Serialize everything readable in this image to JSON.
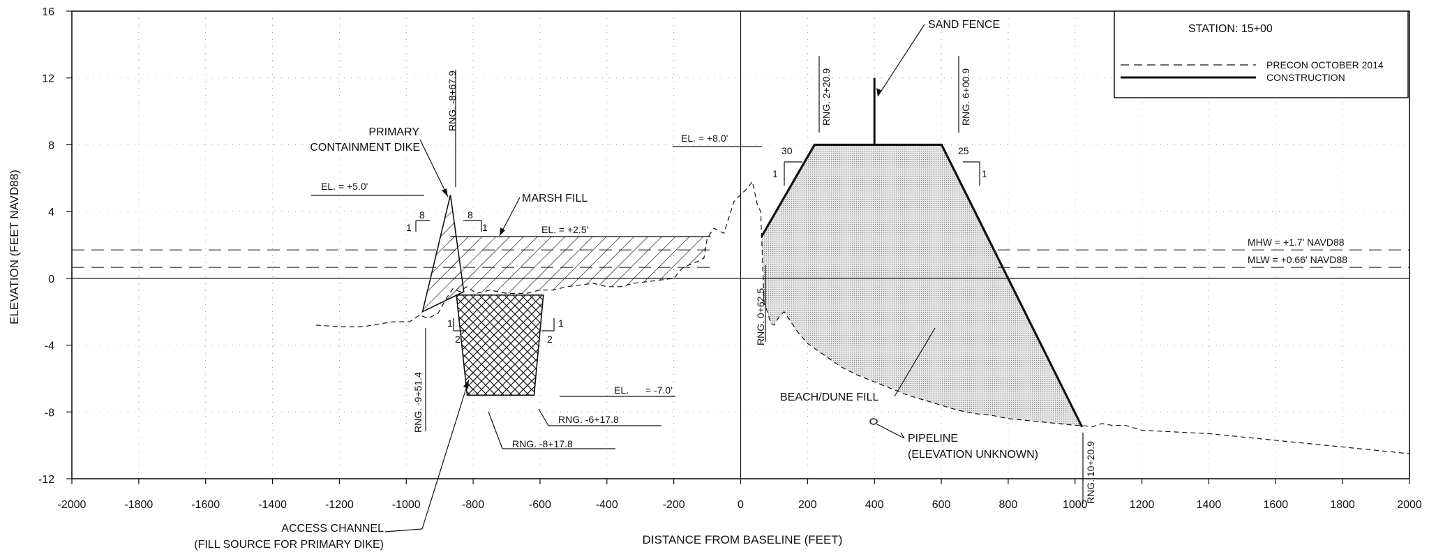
{
  "chart_data": {
    "type": "line",
    "title": "STATION: 15+00",
    "xlabel": "DISTANCE FROM BASELINE (FEET)",
    "ylabel": "ELEVATION (FEET NAVD88)",
    "xlim": [
      -2000,
      2000
    ],
    "ylim": [
      -12,
      16
    ],
    "x_ticks": [
      -2000,
      -1800,
      -1600,
      -1400,
      -1200,
      -1000,
      -800,
      -600,
      -400,
      -200,
      0,
      200,
      400,
      600,
      800,
      1000,
      1200,
      1400,
      1600,
      1800,
      2000
    ],
    "y_ticks": [
      -12,
      -8,
      -4,
      0,
      4,
      8,
      12,
      16
    ],
    "grid": "dotted",
    "legend_position": "top-right",
    "legend": [
      {
        "label": "PRECON OCTOBER 2014",
        "style": "dashed"
      },
      {
        "label": "CONSTRUCTION",
        "style": "solid-bold"
      }
    ],
    "series": [
      {
        "name": "PRECON OCTOBER 2014",
        "x": [
          -1270,
          -1200,
          -1130,
          -1040,
          -990,
          -960,
          -935,
          -905,
          -880,
          -860,
          -840,
          -820,
          -790,
          -770,
          -750,
          -700,
          -640,
          -600,
          -560,
          -520,
          -480,
          -440,
          -400,
          -360,
          -320,
          -280,
          -240,
          -200,
          -175,
          -155,
          -130,
          -110,
          -100,
          -80,
          -50,
          -20,
          0,
          20,
          35,
          50,
          60,
          70,
          80,
          90,
          100,
          115,
          130,
          150,
          170,
          200,
          250,
          300,
          350,
          400,
          450,
          500,
          550,
          600,
          650,
          700,
          750,
          800,
          850,
          900,
          950,
          1000,
          1020,
          1050,
          1080,
          1110,
          1150,
          1200,
          1300,
          1400,
          1500,
          1600,
          1700,
          1800,
          1900,
          1950,
          2000
        ],
        "y": [
          -2.8,
          -2.9,
          -2.9,
          -2.6,
          -2.6,
          -2.2,
          -2.4,
          -2.1,
          -1.2,
          -0.6,
          -0.8,
          -0.5,
          -0.9,
          -0.8,
          -0.7,
          -0.9,
          -0.9,
          -0.7,
          -0.7,
          -0.5,
          -0.4,
          -0.3,
          -0.5,
          -0.5,
          -0.3,
          -0.2,
          -0.1,
          0.0,
          0.6,
          0.8,
          1.0,
          1.2,
          2.4,
          3.0,
          2.7,
          4.6,
          5.0,
          5.4,
          5.8,
          4.4,
          4.0,
          -1.5,
          -2.0,
          -2.7,
          -2.8,
          -2.3,
          -2.0,
          -2.6,
          -3.2,
          -3.9,
          -4.6,
          -5.3,
          -5.8,
          -6.2,
          -6.6,
          -7.0,
          -7.3,
          -7.6,
          -7.9,
          -8.1,
          -8.2,
          -8.4,
          -8.5,
          -8.6,
          -8.7,
          -8.8,
          -8.8,
          -8.9,
          -8.7,
          -8.8,
          -8.8,
          -9.1,
          -9.2,
          -9.3,
          -9.5,
          -9.7,
          -9.9,
          -10.1,
          -10.3,
          -10.4,
          -10.5
        ]
      },
      {
        "name": "CONSTRUCTION",
        "x": [
          62.5,
          220.9,
          600.9,
          1020.9
        ],
        "y": [
          2.5,
          8.0,
          8.0,
          -8.9
        ]
      }
    ],
    "sand_fence": {
      "x": 400,
      "y": [
        8,
        12
      ]
    },
    "marsh_fill": {
      "x_start": -867.9,
      "x_end": -90,
      "el": 2.5
    },
    "containment_dike": {
      "x": [
        -951.4,
        -867.9,
        -827.9
      ],
      "y": [
        -2.0,
        5.0,
        -0.8
      ]
    },
    "access_channel": {
      "x": [
        -850,
        -817.8,
        -617.8,
        -590
      ],
      "y": [
        -1.0,
        -7.0,
        -7.0,
        -1.0
      ]
    },
    "reference_lines": [
      {
        "label": "MHW = +1.7' NAVD88",
        "y": 1.7
      },
      {
        "label": "MLW = +0.66' NAVD88",
        "y": 0.66
      }
    ],
    "annotations": {
      "sand_fence": "SAND FENCE",
      "primary_dike_1": "PRIMARY",
      "primary_dike_2": "CONTAINMENT DIKE",
      "marsh_fill": "MARSH FILL",
      "beach_fill": "BEACH/DUNE FILL",
      "pipeline_1": "PIPELINE",
      "pipeline_2": "(ELEVATION UNKNOWN)",
      "access_1": "ACCESS CHANNEL",
      "access_2": "(FILL SOURCE FOR PRIMARY DIKE)",
      "el_5": "EL. = +5.0'",
      "el_8": "EL. = +8.0'",
      "el_25": "EL. = +2.5'",
      "el_7a": "EL.",
      "el_7b": "= -7.0'",
      "rng_679": "RNG. -8+67.9",
      "rng_514": "RNG. -9+51.4",
      "rng_178a": "RNG. -6+17.8",
      "rng_178b": "RNG. -8+17.8",
      "rng_625": "RNG. 0+62.5",
      "rng_209": "RNG. 2+20.9",
      "rng_609": "RNG. 6+00.9",
      "rng_1009": "RNG. 10+20.9",
      "slope_30": "30",
      "slope_25": "25",
      "slope_8": "8",
      "slope_2": "2",
      "slope_1": "1"
    }
  }
}
